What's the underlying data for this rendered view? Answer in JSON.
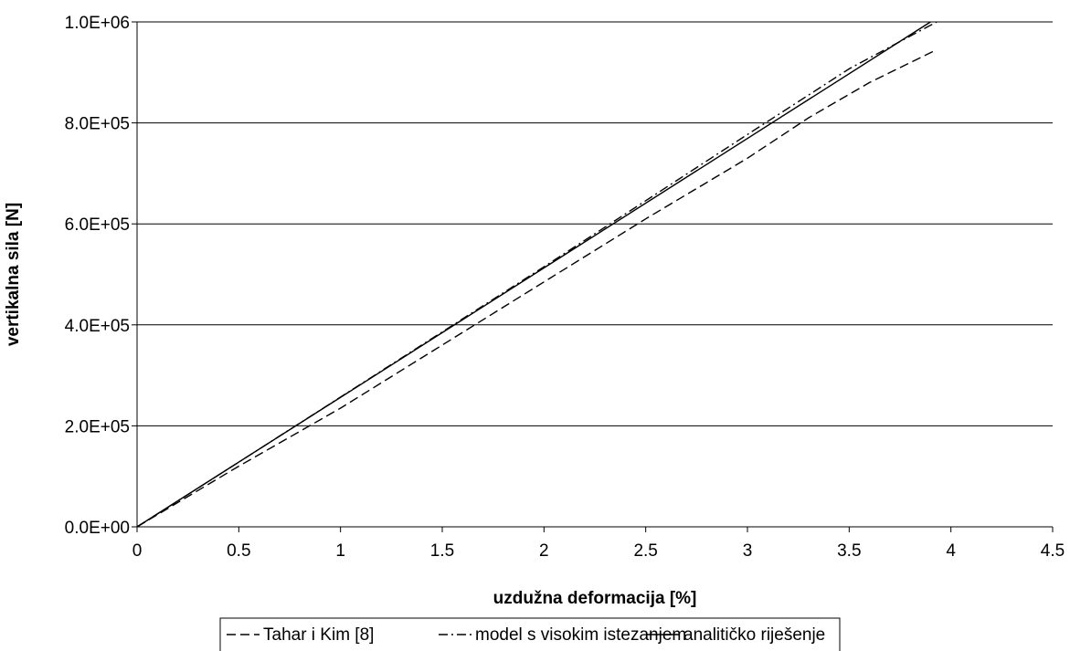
{
  "chart_data": {
    "type": "line",
    "xlabel": "uzdužna deformacija [%]",
    "ylabel": "vertikalna sila [N]",
    "xlim": [
      0,
      4.5
    ],
    "ylim": [
      0,
      1000000
    ],
    "x_ticks": [
      0,
      0.5,
      1,
      1.5,
      2,
      2.5,
      3,
      3.5,
      4,
      4.5
    ],
    "x_tick_labels": [
      "0",
      "0.5",
      "1",
      "1.5",
      "2",
      "2.5",
      "3",
      "3.5",
      "4",
      "4.5"
    ],
    "y_ticks": [
      0,
      200000,
      400000,
      600000,
      800000,
      1000000
    ],
    "y_tick_labels": [
      "0.0E+00",
      "2.0E+05",
      "4.0E+05",
      "6.0E+05",
      "8.0E+05",
      "1.0E+06"
    ],
    "grid": "horizontal",
    "legend_position": "bottom",
    "series": [
      {
        "name": "Tahar i Kim [8]",
        "style": "dashed",
        "color": "#000000",
        "x": [
          0,
          0.5,
          1.0,
          1.5,
          2.0,
          2.5,
          3.0,
          3.3,
          3.6,
          3.93
        ],
        "y": [
          0,
          120000,
          235000,
          360000,
          485000,
          610000,
          730000,
          810000,
          880000,
          945000
        ]
      },
      {
        "name": "model s visokim istezanjem",
        "style": "dash-dot",
        "color": "#000000",
        "x": [
          0,
          0.5,
          1.0,
          1.5,
          2.0,
          2.5,
          3.0,
          3.5,
          3.93
        ],
        "y": [
          0,
          128000,
          257000,
          386000,
          515000,
          646000,
          777000,
          907000,
          1000000
        ]
      },
      {
        "name": "analitičko riješenje",
        "style": "solid",
        "color": "#000000",
        "x": [
          0,
          3.9
        ],
        "y": [
          0,
          1000000
        ]
      }
    ]
  }
}
